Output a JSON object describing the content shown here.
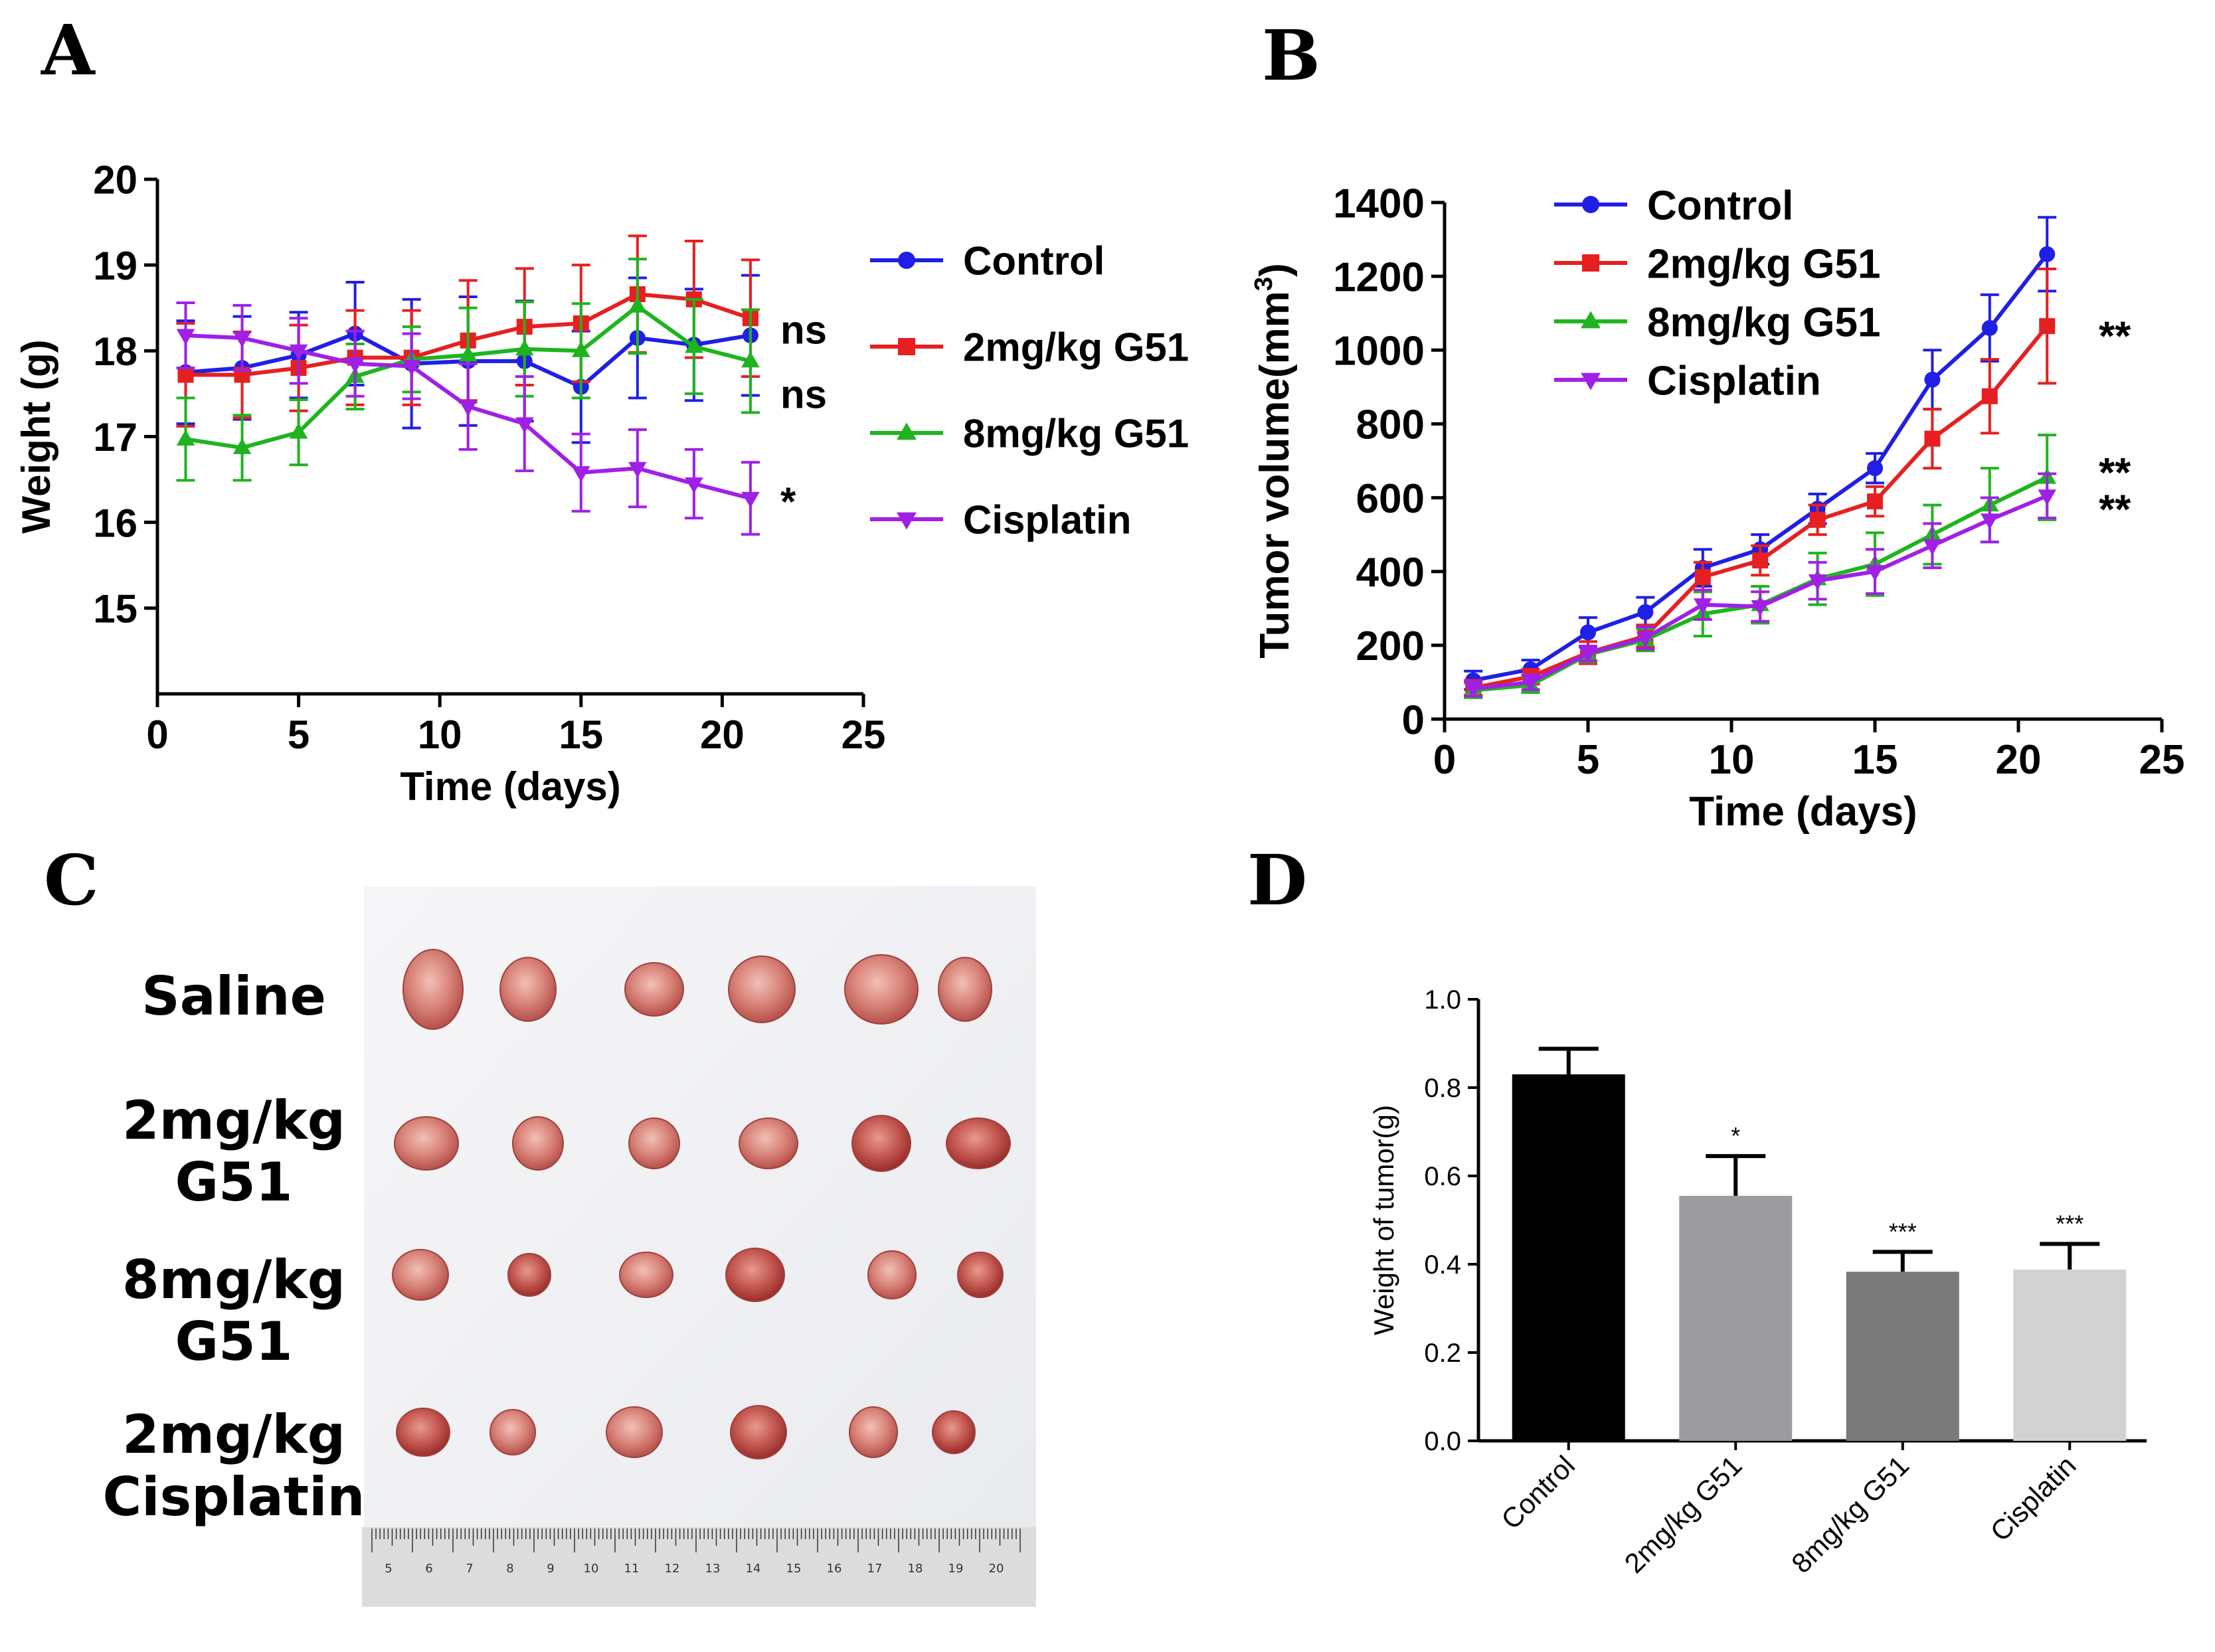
{
  "panels": {
    "A": "A",
    "B": "B",
    "C": "C",
    "D": "D"
  },
  "colors": {
    "control": "#1f1fe6",
    "g51_2": "#e62020",
    "g51_8": "#1fb41f",
    "cisplatin": "#a020e6",
    "bar_control": "#000000",
    "bar_g51_2": "#9b9ba0",
    "bar_g51_8": "#7a7a7a",
    "bar_cisplatin": "#d2d2d2"
  },
  "chart_data": [
    {
      "id": "A",
      "type": "line",
      "xlabel": "Time (days)",
      "ylabel": "Weight (g)",
      "xlim": [
        0,
        25
      ],
      "ylim": [
        14,
        20
      ],
      "xticks": [
        "0",
        "5",
        "10",
        "15",
        "20",
        "25"
      ],
      "yticks": [
        "15",
        "16",
        "17",
        "18",
        "19",
        "20"
      ],
      "x": [
        1,
        3,
        5,
        7,
        9,
        11,
        13,
        15,
        17,
        19,
        21
      ],
      "series": [
        {
          "name": "Control",
          "marker": "circle",
          "color": "#1f1fe6",
          "values": [
            17.75,
            17.8,
            17.95,
            18.2,
            17.85,
            17.88,
            17.88,
            17.58,
            18.15,
            18.07,
            18.18
          ],
          "errors": [
            0.6,
            0.6,
            0.5,
            0.6,
            0.75,
            0.75,
            0.7,
            0.65,
            0.7,
            0.65,
            0.7
          ]
        },
        {
          "name": "2mg/kg G51",
          "marker": "square",
          "color": "#e62020",
          "values": [
            17.72,
            17.72,
            17.8,
            17.92,
            17.92,
            18.12,
            18.28,
            18.32,
            18.66,
            18.6,
            18.38
          ],
          "errors": [
            0.6,
            0.5,
            0.5,
            0.55,
            0.55,
            0.7,
            0.68,
            0.68,
            0.68,
            0.68,
            0.68
          ]
        },
        {
          "name": "8mg/kg G51",
          "marker": "triangle",
          "color": "#1fb41f",
          "values": [
            16.97,
            16.87,
            17.05,
            17.7,
            17.9,
            17.95,
            18.02,
            18.0,
            18.52,
            18.05,
            17.88
          ],
          "errors": [
            0.48,
            0.38,
            0.38,
            0.38,
            0.38,
            0.55,
            0.55,
            0.55,
            0.55,
            0.55,
            0.6
          ]
        },
        {
          "name": "Cisplatin",
          "marker": "triangle-down",
          "color": "#a020e6",
          "values": [
            18.18,
            18.15,
            18.0,
            17.85,
            17.82,
            17.35,
            17.15,
            16.58,
            16.63,
            16.45,
            16.28
          ],
          "errors": [
            0.38,
            0.38,
            0.38,
            0.38,
            0.38,
            0.5,
            0.55,
            0.45,
            0.45,
            0.4,
            0.42
          ]
        }
      ],
      "legend": [
        "Control",
        "2mg/kg G51",
        "8mg/kg G51",
        "Cisplatin"
      ],
      "legend_position": "right",
      "annotations": [
        "ns",
        "ns",
        "*"
      ],
      "annotation_values": [
        18.25,
        17.5,
        16.25
      ]
    },
    {
      "id": "B",
      "type": "line",
      "xlabel": "Time (days)",
      "ylabel": "Tumor volume(mm",
      "ylabel_sup": "3",
      "ylabel_close": ")",
      "xlim": [
        0,
        25
      ],
      "ylim": [
        0,
        1400
      ],
      "xticks": [
        "0",
        "5",
        "10",
        "15",
        "20",
        "25"
      ],
      "yticks": [
        "0",
        "200",
        "400",
        "600",
        "800",
        "1000",
        "1200",
        "1400"
      ],
      "x": [
        1,
        3,
        5,
        7,
        9,
        11,
        13,
        15,
        17,
        19,
        21
      ],
      "series": [
        {
          "name": "Control",
          "marker": "circle",
          "color": "#1f1fe6",
          "values": [
            105,
            135,
            235,
            290,
            410,
            460,
            570,
            680,
            920,
            1060,
            1260
          ],
          "errors": [
            25,
            25,
            40,
            40,
            50,
            40,
            40,
            40,
            80,
            90,
            100
          ]
        },
        {
          "name": "2mg/kg G51",
          "marker": "square",
          "color": "#e62020",
          "values": [
            85,
            115,
            180,
            225,
            385,
            430,
            540,
            590,
            760,
            875,
            1065
          ],
          "errors": [
            20,
            20,
            30,
            30,
            40,
            40,
            40,
            40,
            80,
            100,
            155
          ]
        },
        {
          "name": "8mg/kg G51",
          "marker": "triangle",
          "color": "#1fb41f",
          "values": [
            78,
            92,
            175,
            215,
            285,
            310,
            380,
            420,
            500,
            580,
            655
          ],
          "errors": [
            20,
            20,
            20,
            30,
            60,
            50,
            70,
            85,
            80,
            100,
            115
          ]
        },
        {
          "name": "Cisplatin",
          "marker": "triangle-down",
          "color": "#a020e6",
          "values": [
            82,
            100,
            178,
            220,
            310,
            305,
            375,
            400,
            470,
            540,
            605
          ],
          "errors": [
            20,
            20,
            20,
            30,
            40,
            40,
            50,
            60,
            60,
            60,
            60
          ]
        }
      ],
      "legend": [
        "Control",
        "2mg/kg G51",
        "8mg/kg G51",
        "Cisplatin"
      ],
      "legend_position": "top-left",
      "annotations": [
        "**",
        "**",
        "**"
      ],
      "annotation_values": [
        1040,
        670,
        570
      ]
    },
    {
      "id": "D",
      "type": "bar",
      "ylabel": "Weight of tumor(g)",
      "ylim": [
        0,
        1.0
      ],
      "yticks": [
        "0.0",
        "0.2",
        "0.4",
        "0.6",
        "0.8",
        "1.0"
      ],
      "categories": [
        "Control",
        "2mg/kg G51",
        "8mg/kg G51",
        "Cisplatin"
      ],
      "values": [
        0.83,
        0.555,
        0.383,
        0.388
      ],
      "errors": [
        0.058,
        0.09,
        0.045,
        0.058
      ],
      "bar_colors": [
        "#000000",
        "#9b9ba0",
        "#7a7a7a",
        "#d2d2d2"
      ],
      "significance": [
        "",
        "*",
        "***",
        "***"
      ]
    }
  ],
  "photo": {
    "row_labels": [
      {
        "line1": "Saline",
        "line2": ""
      },
      {
        "line1": "2mg/kg",
        "line2": "G51"
      },
      {
        "line1": "8mg/kg",
        "line2": "G51"
      },
      {
        "line1": "2mg/kg",
        "line2": "Cisplatin"
      }
    ],
    "ruler_numbers": [
      "5",
      "6",
      "7",
      "8",
      "9",
      "10",
      "11",
      "12",
      "13",
      "14",
      "15",
      "16",
      "17",
      "18",
      "19",
      "20"
    ]
  }
}
